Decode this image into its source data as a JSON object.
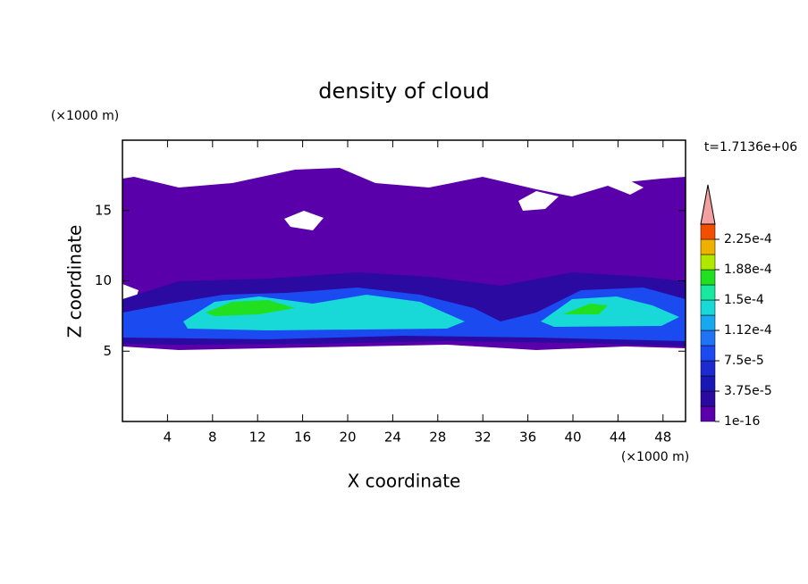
{
  "chart_data": {
    "type": "contour",
    "title": "density of cloud",
    "xlabel": "X coordinate",
    "ylabel": "Z coordinate",
    "xunit": "(×1000 m)",
    "yunit": "(×1000 m)",
    "annotation": "t=1.7136e+06",
    "xlim": [
      0,
      50
    ],
    "xticks": [
      4,
      8,
      12,
      16,
      20,
      24,
      28,
      32,
      36,
      40,
      44,
      48
    ],
    "ylim": [
      0,
      20
    ],
    "yticks": [
      5,
      10,
      15
    ],
    "colorbar": {
      "lim": [
        1e-16,
        0.00024375
      ],
      "ticks": [
        1e-16,
        {
          "value": 3.75e-05,
          "label": "3.75e-5"
        },
        {
          "value": 7.5e-05,
          "label": "7.5e-5"
        },
        {
          "value": 0.0001125,
          "label": "1.12e-4"
        },
        {
          "value": 0.00015,
          "label": "1.5e-4"
        },
        {
          "value": 0.0001875,
          "label": "1.88e-4"
        },
        {
          "value": 0.000225,
          "label": "2.25e-4"
        }
      ],
      "colors": [
        "#5a00aa",
        "#2a0aa0",
        "#1a18b4",
        "#1c2ad0",
        "#1a4af0",
        "#1e74f4",
        "#18a8f0",
        "#18d8d8",
        "#18e8a0",
        "#20e020",
        "#b0e800",
        "#f0b000",
        "#f05000"
      ],
      "extend_color": "#f4a0a0"
    }
  }
}
